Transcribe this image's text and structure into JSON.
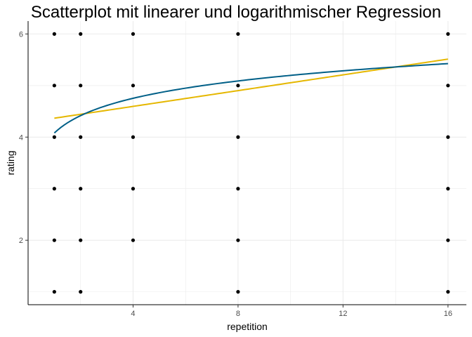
{
  "chart_data": {
    "type": "scatter",
    "title": "Scatterplot mit linearer und logarithmischer Regression",
    "xlabel": "repetition",
    "ylabel": "rating",
    "xlim": [
      0.0,
      16.7
    ],
    "ylim": [
      0.75,
      6.25
    ],
    "xticks": [
      4,
      8,
      12,
      16
    ],
    "yticks": [
      2,
      4,
      6
    ],
    "grid": true,
    "points": [
      {
        "x": 1,
        "y": 1
      },
      {
        "x": 1,
        "y": 2
      },
      {
        "x": 1,
        "y": 3
      },
      {
        "x": 1,
        "y": 4
      },
      {
        "x": 1,
        "y": 5
      },
      {
        "x": 1,
        "y": 6
      },
      {
        "x": 2,
        "y": 1
      },
      {
        "x": 2,
        "y": 2
      },
      {
        "x": 2,
        "y": 3
      },
      {
        "x": 2,
        "y": 4
      },
      {
        "x": 2,
        "y": 5
      },
      {
        "x": 2,
        "y": 6
      },
      {
        "x": 4,
        "y": 2
      },
      {
        "x": 4,
        "y": 3
      },
      {
        "x": 4,
        "y": 4
      },
      {
        "x": 4,
        "y": 5
      },
      {
        "x": 4,
        "y": 6
      },
      {
        "x": 8,
        "y": 1
      },
      {
        "x": 8,
        "y": 2
      },
      {
        "x": 8,
        "y": 3
      },
      {
        "x": 8,
        "y": 4
      },
      {
        "x": 8,
        "y": 5
      },
      {
        "x": 8,
        "y": 6
      },
      {
        "x": 16,
        "y": 1
      },
      {
        "x": 16,
        "y": 2
      },
      {
        "x": 16,
        "y": 3
      },
      {
        "x": 16,
        "y": 4
      },
      {
        "x": 16,
        "y": 5
      },
      {
        "x": 16,
        "y": 6
      }
    ],
    "regressions": [
      {
        "kind": "linear",
        "color": "#E5B700",
        "intercept": 4.29,
        "slope": 0.0764,
        "x_range": [
          1,
          16
        ]
      },
      {
        "kind": "logarithmic",
        "color": "#005F87",
        "intercept": 4.08,
        "slope": 0.485,
        "x_range": [
          1,
          16
        ]
      }
    ],
    "colors": {
      "points": "#000000",
      "grid": "#ebebeb",
      "axis": "#000000"
    }
  }
}
